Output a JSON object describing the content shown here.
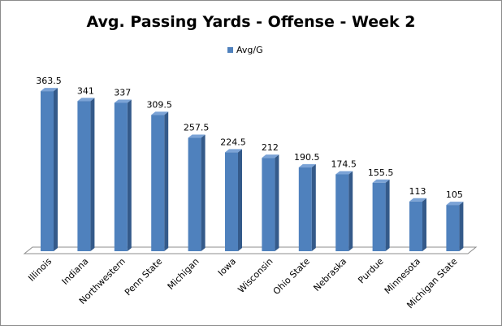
{
  "chart_data": {
    "type": "bar",
    "title": "Avg. Passing Yards - Offense - Week 2",
    "categories": [
      "Illinois",
      "Indiana",
      "Northwestern",
      "Penn State",
      "Michigan",
      "Iowa",
      "Wisconsin",
      "Ohio State",
      "Nebraska",
      "Purdue",
      "Minnesota",
      "Michigan State"
    ],
    "series": [
      {
        "name": "Avg/G",
        "values": [
          363.5,
          341,
          337,
          309.5,
          257.5,
          224.5,
          212,
          190.5,
          174.5,
          155.5,
          113,
          105
        ],
        "labels": [
          "363.5",
          "341",
          "337",
          "309.5",
          "257.5",
          "224.5",
          "212",
          "190.5",
          "174.5",
          "155.5",
          "113",
          "105"
        ]
      }
    ],
    "xlabel": "",
    "ylabel": "",
    "ylim": [
      0,
      400
    ],
    "grid": false,
    "legend_position": "top",
    "three_d": true,
    "colors": {
      "bar_front": "#4f81bd",
      "bar_side": "#345a8a",
      "bar_top": "#7ba3d6",
      "floor": "#ffffff",
      "floor_edge": "#8c8c8c"
    }
  }
}
